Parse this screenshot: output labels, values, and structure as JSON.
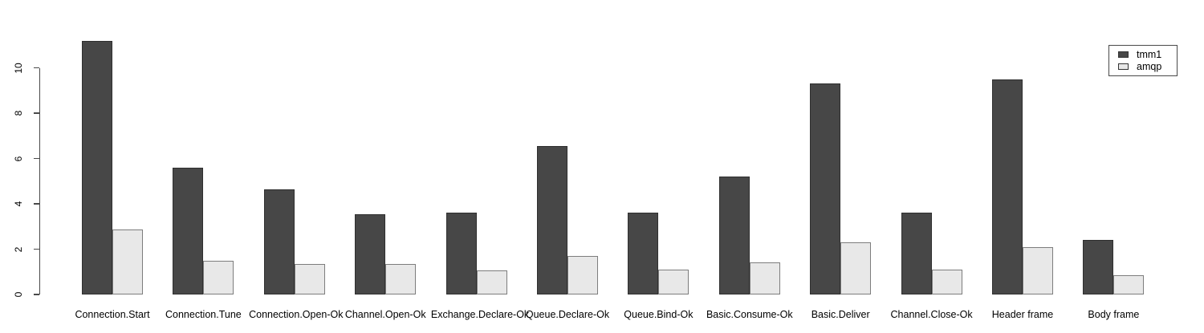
{
  "chart_data": {
    "type": "bar",
    "grouped": true,
    "title": "",
    "xlabel": "",
    "ylabel": "",
    "categories": [
      "Connection.Start",
      "Connection.Tune",
      "Connection.Open-Ok",
      "Channel.Open-Ok",
      "Exchange.Declare-Ok",
      "Queue.Declare-Ok",
      "Queue.Bind-Ok",
      "Basic.Consume-Ok",
      "Basic.Deliver",
      "Channel.Close-Ok",
      "Header frame",
      "Body frame"
    ],
    "series": [
      {
        "name": "tmm1",
        "color": "#474747",
        "border": "#2f2f2f",
        "values": [
          11.2,
          5.6,
          4.65,
          3.55,
          3.6,
          6.55,
          3.6,
          5.2,
          9.3,
          3.6,
          9.5,
          2.4
        ]
      },
      {
        "name": "amqp",
        "color": "#e8e8e8",
        "border": "#7d7d7d",
        "values": [
          2.85,
          1.5,
          1.35,
          1.35,
          1.05,
          1.7,
          1.1,
          1.4,
          2.3,
          1.1,
          2.1,
          0.85
        ]
      }
    ],
    "ylim": [
      0,
      11.6
    ],
    "yticks": [
      0,
      2,
      4,
      6,
      8,
      10
    ],
    "grid": false,
    "legend_position": "top-right",
    "axis_color": "#4a4a4a",
    "text_color": "#000000",
    "background": "#ffffff"
  }
}
